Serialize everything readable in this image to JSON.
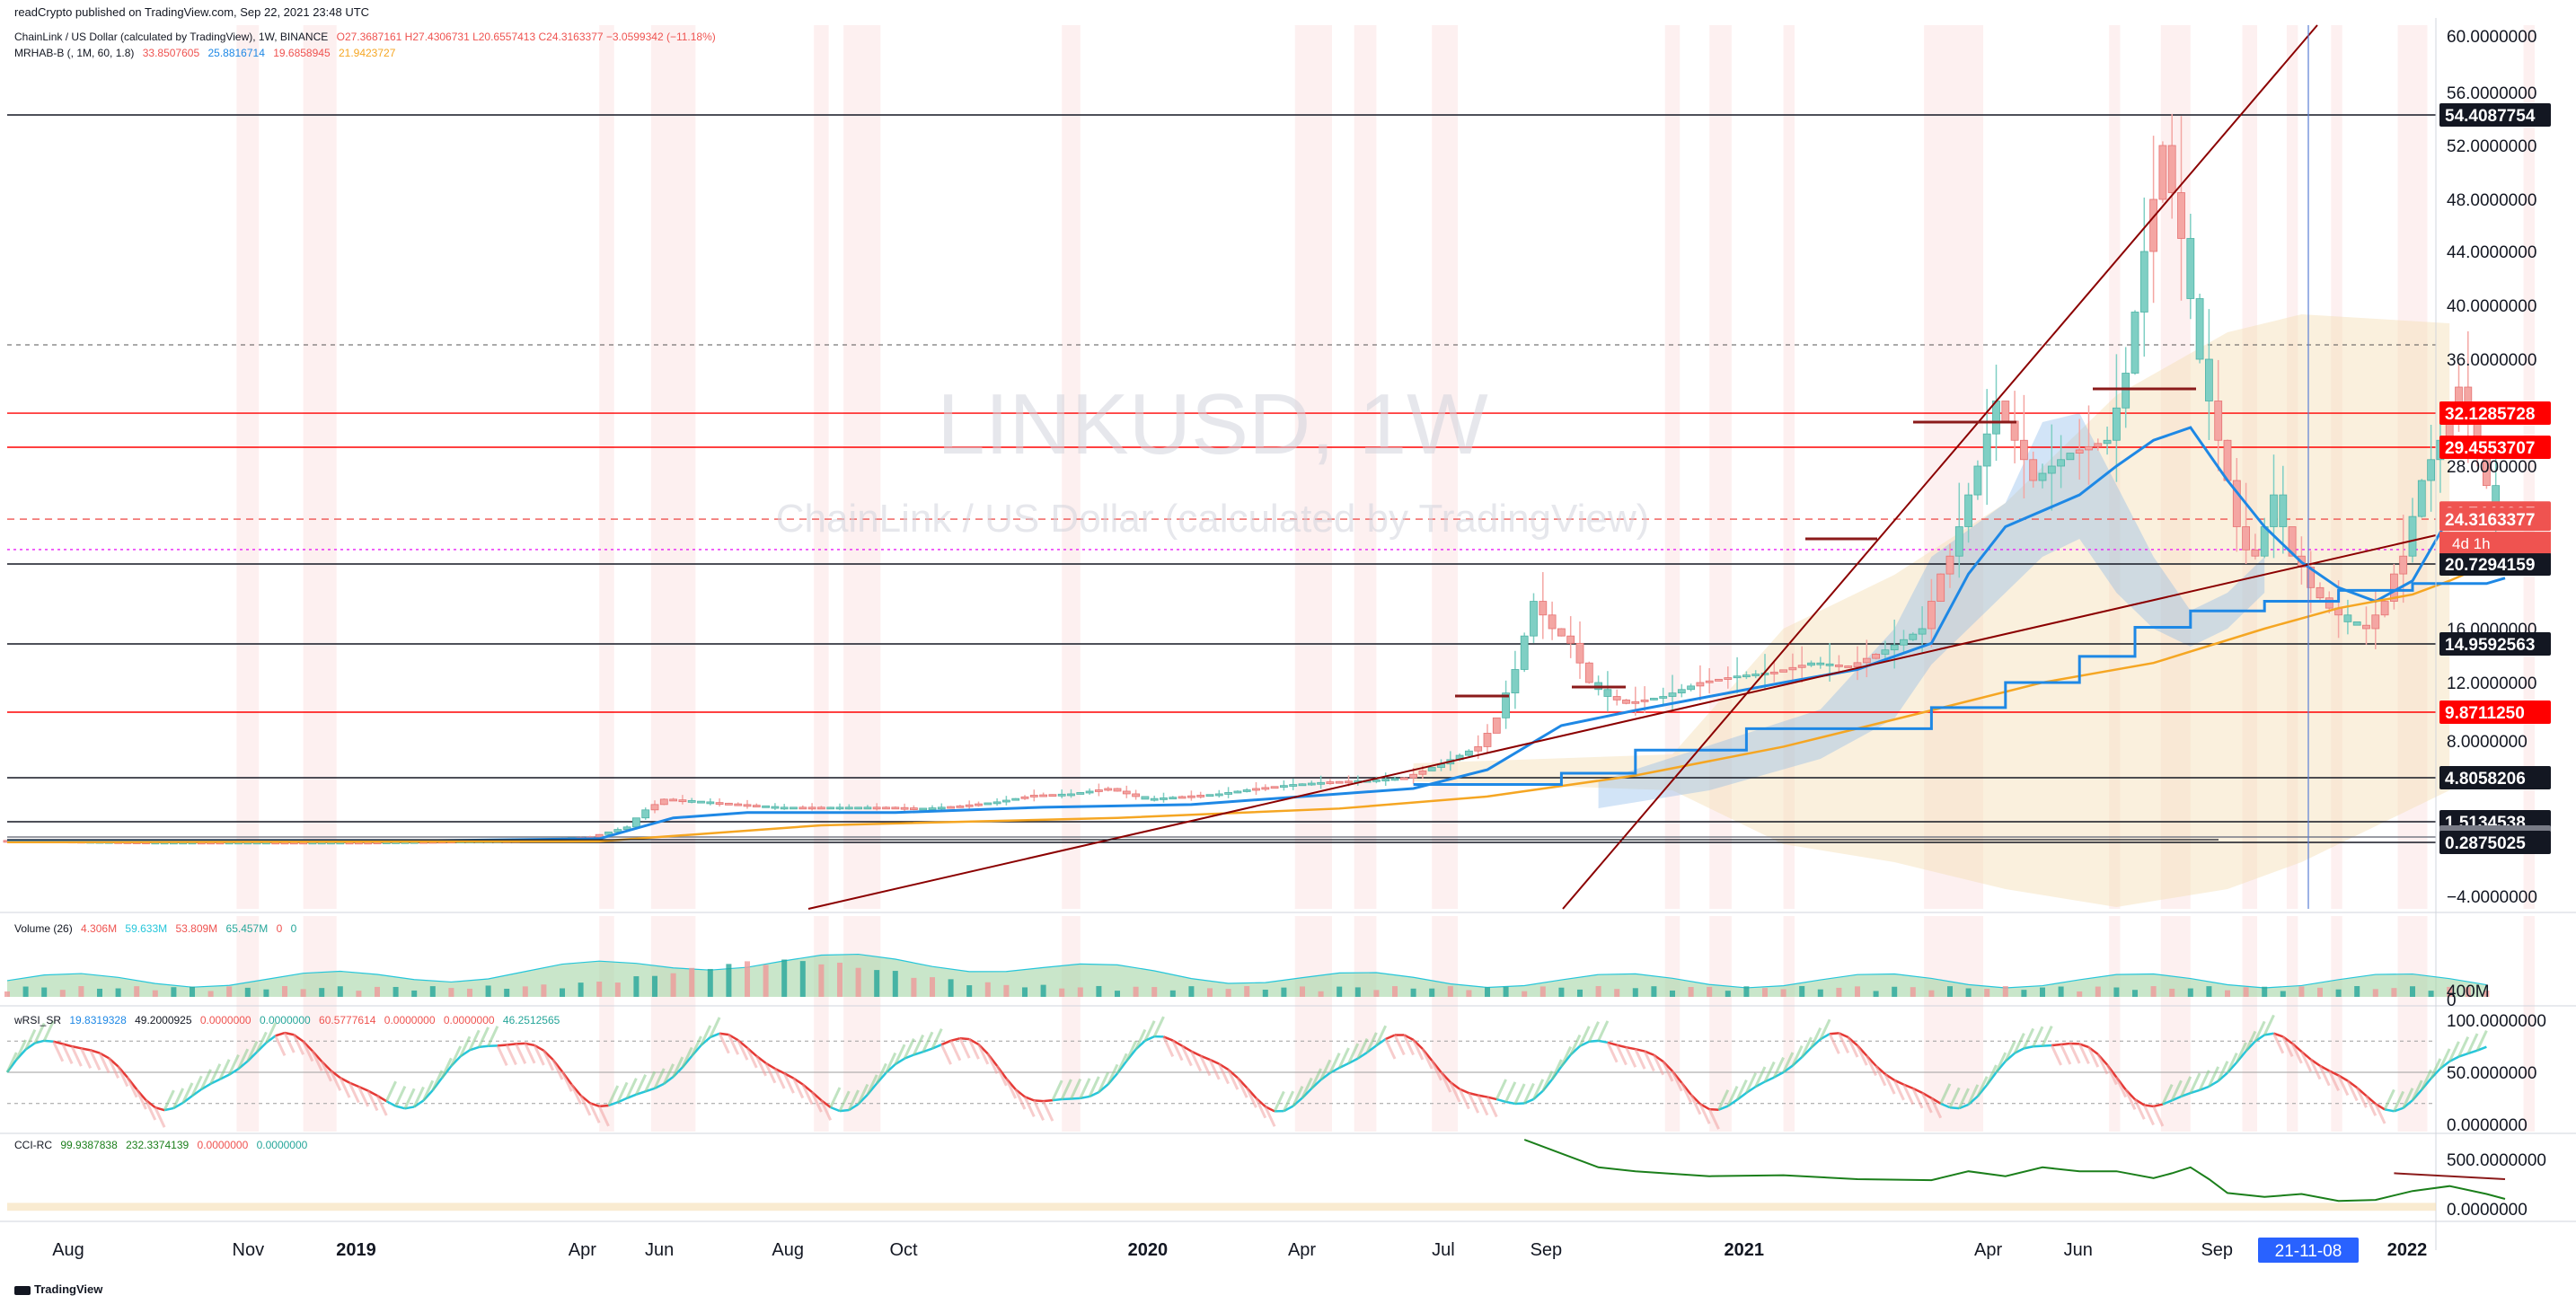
{
  "header": {
    "publisher": "readCrypto published on TradingView.com, Sep 22, 2021 23:48 UTC",
    "symbol_line": "ChainLink / US Dollar (calculated by TradingView), 1W, BINANCE",
    "ohlc": "O27.3687161 H27.4306731 L20.6557413 C24.3163377 −3.0599342 (−11.18%)",
    "indicator_mrhab": "MRHAB-B (, 1M, 60, 1.8)",
    "indicator_mrhab_values": [
      "33.8507605",
      "25.8816714",
      "19.6858945",
      "21.9423727"
    ]
  },
  "watermark": {
    "symbol": "LINKUSD, 1W",
    "name": "ChainLink / US Dollar (calculated by TradingView)"
  },
  "colors": {
    "up": "#26a69a",
    "down": "#ef5350",
    "trend": "#8b0000",
    "ma_blue": "#1e88e5",
    "ma_orange": "#f5a623",
    "cloud": "#f5deb3",
    "magenta": "#e91ef5"
  },
  "chart_data": {
    "type": "line",
    "x": [
      "2018-08",
      "2018-11",
      "2019-01",
      "2019-04",
      "2019-06",
      "2019-08",
      "2019-10",
      "2020-01",
      "2020-04",
      "2020-07",
      "2020-09",
      "2021-01",
      "2021-04",
      "2021-05",
      "2021-06",
      "2021-09"
    ],
    "series": [],
    "price_axis_ticks": [
      "60.0000000",
      "56.0000000",
      "52.0000000",
      "48.0000000",
      "44.0000000",
      "40.0000000",
      "36.0000000",
      "28.0000000",
      "16.0000000",
      "12.0000000",
      "8.0000000",
      "−4.0000000"
    ],
    "time_axis_labels": [
      "Aug",
      "Nov",
      "2019",
      "Apr",
      "Jun",
      "Aug",
      "Oct",
      "2020",
      "Apr",
      "Jul",
      "Sep",
      "2021",
      "Apr",
      "Jun",
      "Sep",
      "2022"
    ],
    "time_axis_badge": "21-11-08",
    "horizontal_levels": [
      {
        "value": "54.4087754",
        "tag_bg": "#131722",
        "line": "#131722"
      },
      {
        "value": "32.1285728",
        "tag_bg": "#ff0000",
        "line": "#ff0000"
      },
      {
        "value": "29.4553707",
        "tag_bg": "#ff0000",
        "line": "#ff0000"
      },
      {
        "value": "24.7440907",
        "tag_bg": "#ef5350",
        "line": "none"
      },
      {
        "value": "24.3163377",
        "tag_bg": "#ef5350",
        "line": "dashed"
      },
      {
        "value": "23.0423632",
        "tag_bg": "#e91ef5",
        "line": "#e91ef5"
      },
      {
        "value": "20.7294159",
        "tag_bg": "#131722",
        "line": "#131722"
      },
      {
        "value": "14.9592563",
        "tag_bg": "#131722",
        "line": "#131722"
      },
      {
        "value": "9.8711250",
        "tag_bg": "#ff0000",
        "line": "#ff0000"
      },
      {
        "value": "4.8058206",
        "tag_bg": "#131722",
        "line": "#131722"
      },
      {
        "value": "1.5134538",
        "tag_bg": "#131722",
        "line": "#131722"
      },
      {
        "value": "0.5994772",
        "tag_bg": "#787b86",
        "line": "#787b86"
      },
      {
        "value": "0.2875025",
        "tag_bg": "#131722",
        "line": "#131722"
      }
    ],
    "countdown": "4d 1h",
    "volume_pane": {
      "label": "Volume (26)",
      "values": [
        "4.306M",
        "59.633M",
        "53.809M",
        "65.457M",
        "0",
        "0"
      ],
      "axis_ticks": [
        "400M",
        "0"
      ]
    },
    "wrsi_pane": {
      "label": "wRSI_SR",
      "values": [
        "19.8319328",
        "49.2000925",
        "0.0000000",
        "0.0000000",
        "60.5777614",
        "0.0000000",
        "0.0000000",
        "46.2512565"
      ],
      "axis_ticks": [
        "100.0000000",
        "50.0000000",
        "0.0000000"
      ]
    },
    "cci_pane": {
      "label": "CCI-RC",
      "values": [
        "99.9387838",
        "232.3374139",
        "0.0000000",
        "0.0000000"
      ],
      "axis_ticks": [
        "500.0000000",
        "0.0000000"
      ]
    }
  },
  "footer": {
    "brand": "TradingView"
  }
}
